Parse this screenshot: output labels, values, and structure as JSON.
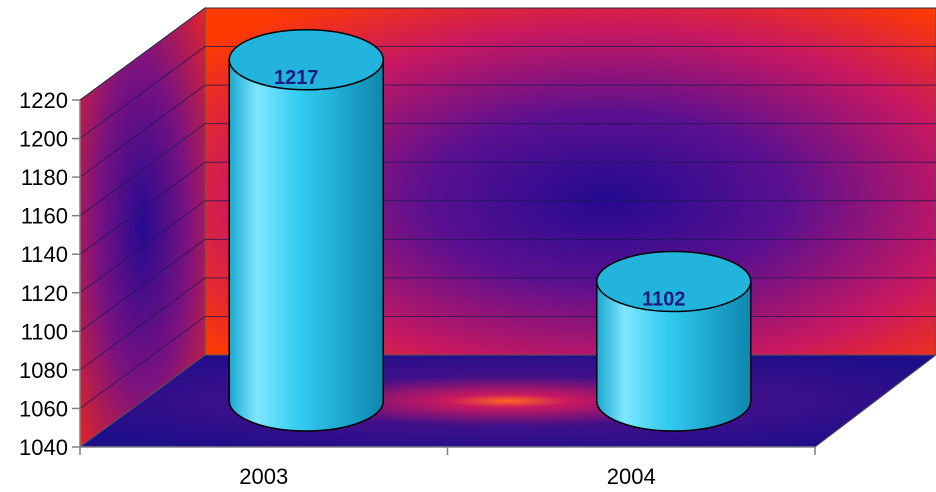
{
  "chart_data": {
    "type": "bar",
    "style": "3d-cylinder",
    "categories": [
      "2003",
      "2004"
    ],
    "values": [
      1217,
      1102
    ],
    "data_labels": [
      "1217",
      "1102"
    ],
    "ylim": [
      1040,
      1220
    ],
    "y_ticks": [
      "1040",
      "1060",
      "1080",
      "1100",
      "1120",
      "1140",
      "1160",
      "1180",
      "1200",
      "1220"
    ],
    "grid": true,
    "legend": "none",
    "colors": {
      "bar": "#33ccf0",
      "wall_edge": "#ff2a00",
      "wall_center": "#2a0a8a",
      "floor": "#24108a",
      "label": "#1a1a80"
    }
  }
}
